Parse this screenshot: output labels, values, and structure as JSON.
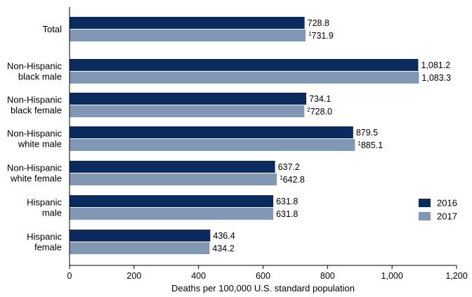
{
  "chart_data": {
    "type": "bar",
    "orientation": "horizontal",
    "categories": [
      [
        "Total"
      ],
      [
        "Non-Hispanic",
        "black male"
      ],
      [
        "Non-Hispanic",
        "black female"
      ],
      [
        "Non-Hispanic",
        "white male"
      ],
      [
        "Non-Hispanic",
        "white female"
      ],
      [
        "Hispanic",
        "male"
      ],
      [
        "Hispanic",
        "female"
      ]
    ],
    "series": [
      {
        "name": "2016",
        "color": "#0b2a5e",
        "values": [
          728.8,
          1081.2,
          734.1,
          879.5,
          637.2,
          631.8,
          436.4
        ],
        "labels": [
          "728.8",
          "1,081.2",
          "734.1",
          "879.5",
          "637.2",
          "631.8",
          "436.4"
        ],
        "footnotes": [
          "",
          "",
          "",
          "",
          "",
          "",
          ""
        ]
      },
      {
        "name": "2017",
        "color": "#8297b4",
        "values": [
          731.9,
          1083.3,
          728.0,
          885.1,
          642.8,
          631.8,
          434.2
        ],
        "labels": [
          "731.9",
          "1,083.3",
          "728.0",
          "885.1",
          "642.8",
          "631.8",
          "434.2"
        ],
        "footnotes": [
          "1",
          "",
          "2",
          "1",
          "1",
          "",
          ""
        ]
      }
    ],
    "xlim": [
      0,
      1200
    ],
    "xticks": [
      0,
      200,
      400,
      600,
      800,
      1000,
      1200
    ],
    "xtick_labels": [
      "0",
      "200",
      "400",
      "600",
      "800",
      "1,000",
      "1,200"
    ],
    "xlabel": "Deaths per 100,000 U.S. standard population",
    "ylabel": "",
    "title": "",
    "grid": false,
    "legend_position": "right"
  }
}
